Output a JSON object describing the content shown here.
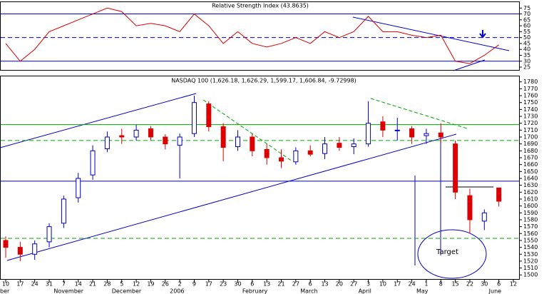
{
  "chart_data": [
    {
      "type": "line",
      "title": "Relative Strength Index (43.8635)",
      "categories": [
        "10",
        "17",
        "24",
        "31",
        "7",
        "14",
        "21",
        "28",
        "5",
        "12",
        "19",
        "26",
        "2",
        "9",
        "17",
        "23",
        "30",
        "6",
        "13",
        "21",
        "27",
        "6",
        "13",
        "20",
        "27",
        "3",
        "10",
        "17",
        "24",
        "1",
        "8",
        "15",
        "22",
        "30",
        "6",
        "12"
      ],
      "series": [
        {
          "color": "#dd0000",
          "values": [
            45,
            30,
            40,
            55,
            60,
            65,
            70,
            75,
            72,
            60,
            62,
            60,
            55,
            70,
            60,
            45,
            55,
            45,
            42,
            45,
            50,
            45,
            55,
            50,
            55,
            68,
            55,
            55,
            52,
            50,
            52,
            30,
            28,
            35,
            43.8635,
            null
          ]
        }
      ],
      "ylim": [
        22,
        80
      ],
      "yticks": [
        25,
        30,
        35,
        40,
        45,
        50,
        55,
        60,
        65,
        70,
        75
      ],
      "hlines": [
        {
          "value": 70,
          "color": "#0000cc",
          "style": "solid"
        },
        {
          "value": 50,
          "color": "#0000cc",
          "style": "dashed"
        },
        {
          "value": 30,
          "color": "#0000cc",
          "style": "solid"
        }
      ]
    },
    {
      "type": "candlestick",
      "title": "NASDAQ 100 (1,626.18, 1,626.29, 1,599.17, 1,606.84, -9.72998)",
      "categories": [
        "10",
        "17",
        "24",
        "31",
        "7",
        "14",
        "21",
        "28",
        "5",
        "12",
        "19",
        "26",
        "2",
        "9",
        "17",
        "23",
        "30",
        "6",
        "13",
        "21",
        "27",
        "6",
        "13",
        "20",
        "27",
        "3",
        "10",
        "17",
        "24",
        "1",
        "8",
        "15",
        "22",
        "30",
        "6",
        "12"
      ],
      "month_labels": [
        "ber",
        null,
        null,
        null,
        "November",
        null,
        null,
        null,
        "December",
        null,
        null,
        null,
        "2006",
        null,
        null,
        null,
        null,
        "February",
        null,
        null,
        null,
        "March",
        null,
        null,
        null,
        "April",
        null,
        null,
        null,
        "May",
        null,
        null,
        null,
        null,
        "June",
        null
      ],
      "open": [
        1550,
        1540,
        1530,
        1548,
        1575,
        1612,
        1645,
        1683,
        1702,
        1700,
        1712,
        1700,
        1688,
        1705,
        1748,
        1715,
        1686,
        1700,
        1682,
        1670,
        1664,
        1680,
        1676,
        1691,
        1686,
        1690,
        1722,
        1710,
        1712,
        1702,
        1706,
        1690,
        1615,
        1578,
        1626.18,
        null
      ],
      "high": [
        1556,
        1548,
        1550,
        1575,
        1615,
        1648,
        1688,
        1708,
        1712,
        1718,
        1716,
        1704,
        1705,
        1760,
        1752,
        1720,
        1710,
        1705,
        1690,
        1682,
        1685,
        1688,
        1700,
        1700,
        1698,
        1752,
        1730,
        1728,
        1716,
        1712,
        1720,
        1695,
        1625,
        1595,
        1626.29,
        null
      ],
      "low": [
        1525,
        1520,
        1522,
        1540,
        1568,
        1605,
        1638,
        1678,
        1690,
        1695,
        1695,
        1682,
        1640,
        1700,
        1708,
        1665,
        1680,
        1672,
        1660,
        1655,
        1660,
        1672,
        1668,
        1680,
        1675,
        1686,
        1700,
        1695,
        1690,
        1690,
        1692,
        1610,
        1560,
        1565,
        1599.17,
        null
      ],
      "close": [
        1540,
        1530,
        1545,
        1570,
        1610,
        1640,
        1680,
        1700,
        1700,
        1710,
        1700,
        1690,
        1700,
        1750,
        1715,
        1685,
        1700,
        1680,
        1670,
        1665,
        1680,
        1675,
        1690,
        1685,
        1690,
        1720,
        1710,
        1710,
        1700,
        1705,
        1700,
        1620,
        1580,
        1590,
        1606.84,
        null
      ],
      "up_color": "#0000cc",
      "down_color": "#dd0000",
      "ylim": [
        1493,
        1788
      ],
      "yticks": [
        1500,
        1510,
        1520,
        1530,
        1540,
        1550,
        1560,
        1570,
        1580,
        1590,
        1600,
        1610,
        1620,
        1630,
        1640,
        1650,
        1660,
        1670,
        1680,
        1690,
        1700,
        1710,
        1720,
        1730,
        1740,
        1750,
        1760,
        1770,
        1780
      ],
      "hlines": [
        {
          "value": 1718,
          "color": "#00aa00",
          "style": "solid"
        },
        {
          "value": 1695,
          "color": "#00aa00",
          "style": "dashed"
        },
        {
          "value": 1636,
          "color": "#0000cc",
          "style": "solid"
        },
        {
          "value": 1553,
          "color": "#00aa00",
          "style": "dashed"
        }
      ],
      "annotation": "Target"
    }
  ]
}
